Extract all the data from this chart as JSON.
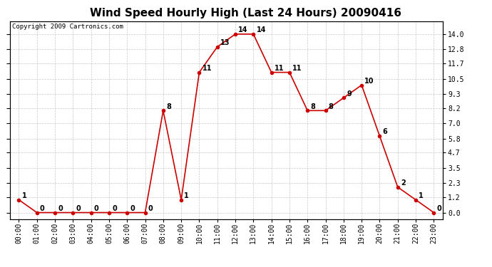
{
  "title": "Wind Speed Hourly High (Last 24 Hours) 20090416",
  "copyright": "Copyright 2009 Cartronics.com",
  "hours": [
    "00:00",
    "01:00",
    "02:00",
    "03:00",
    "04:00",
    "05:00",
    "06:00",
    "07:00",
    "08:00",
    "09:00",
    "10:00",
    "11:00",
    "12:00",
    "13:00",
    "14:00",
    "15:00",
    "16:00",
    "17:00",
    "18:00",
    "19:00",
    "20:00",
    "21:00",
    "22:00",
    "23:00"
  ],
  "values": [
    1,
    0,
    0,
    0,
    0,
    0,
    0,
    0,
    8,
    1,
    11,
    13,
    14,
    14,
    11,
    11,
    8,
    8,
    9,
    10,
    6,
    2,
    1,
    0
  ],
  "line_color": "#cc0000",
  "marker_color": "#cc0000",
  "background_color": "#ffffff",
  "grid_color": "#bbbbbb",
  "yticks": [
    0.0,
    1.2,
    2.3,
    3.5,
    4.7,
    5.8,
    7.0,
    8.2,
    9.3,
    10.5,
    11.7,
    12.8,
    14.0
  ],
  "ylim": [
    -0.5,
    15.0
  ],
  "title_fontsize": 11,
  "label_fontsize": 7,
  "copyright_fontsize": 6.5,
  "annot_fontsize": 7
}
